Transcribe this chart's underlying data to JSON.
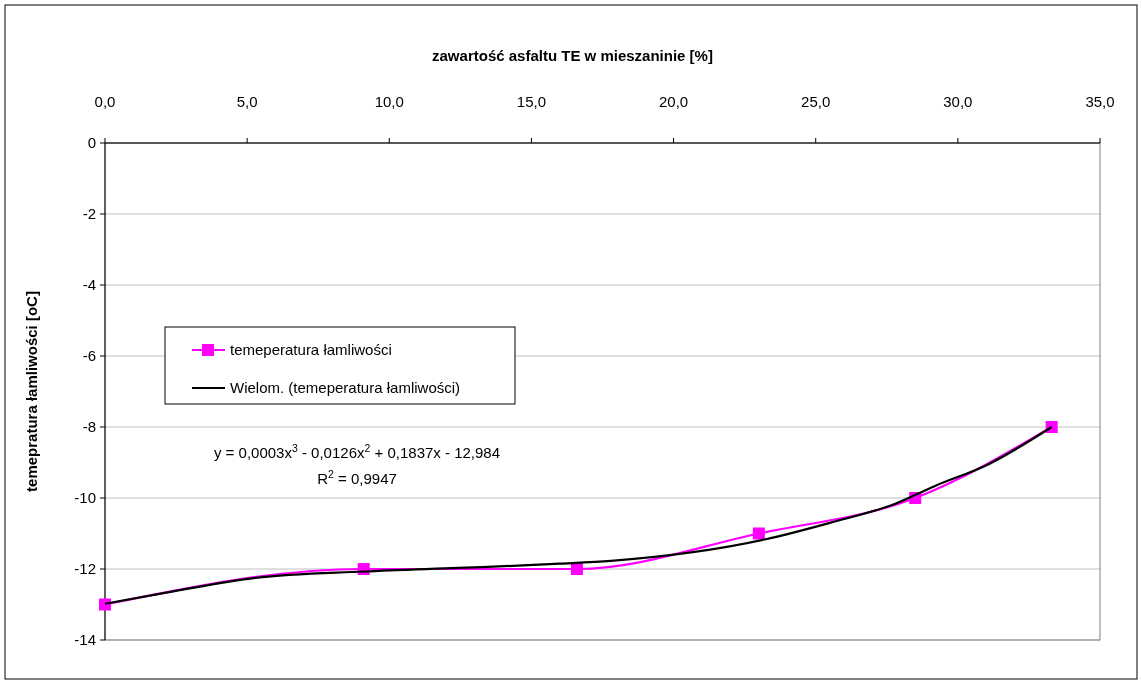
{
  "chart_data": {
    "type": "line",
    "xlabel": "zawartość asfaltu TE w mieszaninie [%]",
    "ylabel": "temepratura łamliwości [oC]",
    "xlim": [
      0,
      35
    ],
    "xticks": [
      {
        "value": 0,
        "label": "0,0"
      },
      {
        "value": 5,
        "label": "5,0"
      },
      {
        "value": 10,
        "label": "10,0"
      },
      {
        "value": 15,
        "label": "15,0"
      },
      {
        "value": 20,
        "label": "20,0"
      },
      {
        "value": 25,
        "label": "25,0"
      },
      {
        "value": 30,
        "label": "30,0"
      },
      {
        "value": 35,
        "label": "35,0"
      }
    ],
    "ylim": [
      -14,
      0
    ],
    "yticks": [
      0,
      -2,
      -4,
      -6,
      -8,
      -10,
      -12,
      -14
    ],
    "grid": "y",
    "legend": "left",
    "series": [
      {
        "name": "temeperatura łamliwości",
        "color": "#ff00ff",
        "marker": "square",
        "x": [
          0,
          9.1,
          16.6,
          23.0,
          28.5,
          33.3
        ],
        "values": [
          -13,
          -12,
          -12,
          -11,
          -10,
          -8
        ]
      },
      {
        "name": "Wielom. (temeperatura łamliwości)",
        "color": "#000000",
        "marker": "none",
        "x": [
          0,
          2.4,
          5.3,
          9.1,
          12.4,
          14.7,
          16.0,
          17.8,
          23.2,
          25.5,
          27.8,
          29.2,
          31.1,
          33.3
        ],
        "values": [
          -12.98,
          -12.63,
          -12.25,
          -12.07,
          -11.97,
          -11.9,
          -11.85,
          -11.77,
          -11.17,
          -10.7,
          -10.16,
          -9.66,
          -9.04,
          -8
        ]
      }
    ],
    "annotations": [
      "y = 0,0003x$^{3}$ - 0,0126x$^{2}$ + 0,1837x - 12,984",
      "R$^{2}$ = 0,9947"
    ]
  }
}
